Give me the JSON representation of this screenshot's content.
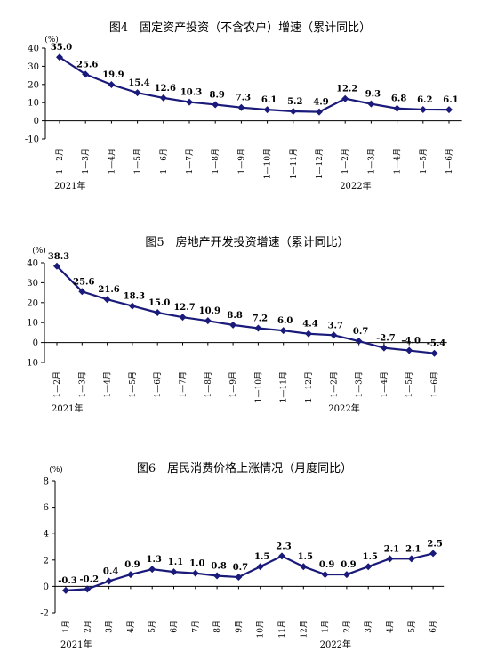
{
  "style": {
    "line_color": "#1a1a7a",
    "axis_color": "#000000"
  },
  "chart_data": [
    {
      "type": "line",
      "title": "图4　固定资产投资（不含农户）增速（累计同比）",
      "unit_label": "(%)",
      "ylim": [
        -10,
        40
      ],
      "yticks": [
        -10,
        0,
        10,
        20,
        30,
        40
      ],
      "categories": [
        "1—2月",
        "1—3月",
        "1—4月",
        "1—5月",
        "1—6月",
        "1—7月",
        "1—8月",
        "1—9月",
        "1—10月",
        "1—11月",
        "1—12月",
        "1—2月",
        "1—3月",
        "1—4月",
        "1—5月",
        "1—6月"
      ],
      "series": [
        {
          "values": [
            35.0,
            25.6,
            19.9,
            15.4,
            12.6,
            10.3,
            8.9,
            7.3,
            6.1,
            5.2,
            4.9,
            12.2,
            9.3,
            6.8,
            6.2,
            6.1
          ]
        }
      ],
      "data_labels": [
        "35.0",
        "25.6",
        "19.9",
        "15.4",
        "12.6",
        "10.3",
        "8.9",
        "7.3",
        "6.1",
        "5.2",
        "4.9",
        "12.2",
        "9.3",
        "6.8",
        "6.2",
        "6.1"
      ],
      "year_labels": [
        {
          "text": "2021年",
          "at_index": 0
        },
        {
          "text": "2022年",
          "at_index": 11
        }
      ],
      "grid": false,
      "legend": "none"
    },
    {
      "type": "line",
      "title": "图5　房地产开发投资增速（累计同比）",
      "unit_label": "(%)",
      "ylim": [
        -10,
        40
      ],
      "yticks": [
        -10,
        0,
        10,
        20,
        30,
        40
      ],
      "categories": [
        "1—2月",
        "1—3月",
        "1—4月",
        "1—5月",
        "1—6月",
        "1—7月",
        "1—8月",
        "1—9月",
        "1—10月",
        "1—11月",
        "1—12月",
        "1—2月",
        "1—3月",
        "1—4月",
        "1—5月",
        "1—6月"
      ],
      "series": [
        {
          "values": [
            38.3,
            25.6,
            21.6,
            18.3,
            15.0,
            12.7,
            10.9,
            8.8,
            7.2,
            6.0,
            4.4,
            3.7,
            0.7,
            -2.7,
            -4.0,
            -5.4
          ]
        }
      ],
      "data_labels": [
        "38.3",
        "25.6",
        "21.6",
        "18.3",
        "15.0",
        "12.7",
        "10.9",
        "8.8",
        "7.2",
        "6.0",
        "4.4",
        "3.7",
        "0.7",
        "-2.7",
        "-4.0",
        "-5.4"
      ],
      "year_labels": [
        {
          "text": "2021年",
          "at_index": 0
        },
        {
          "text": "2022年",
          "at_index": 11
        }
      ],
      "grid": false,
      "legend": "none"
    },
    {
      "type": "line",
      "title": "图6　居民消费价格上涨情况（月度同比）",
      "unit_label": "(%)",
      "ylim": [
        -2,
        8
      ],
      "yticks": [
        -2,
        0,
        2,
        4,
        6,
        8
      ],
      "categories": [
        "1月",
        "2月",
        "3月",
        "4月",
        "5月",
        "6月",
        "7月",
        "8月",
        "9月",
        "10月",
        "11月",
        "12月",
        "1月",
        "2月",
        "3月",
        "4月",
        "5月",
        "6月"
      ],
      "series": [
        {
          "values": [
            -0.3,
            -0.2,
            0.4,
            0.9,
            1.3,
            1.1,
            1.0,
            0.8,
            0.7,
            1.5,
            2.3,
            1.5,
            0.9,
            0.9,
            1.5,
            2.1,
            2.1,
            2.5
          ]
        }
      ],
      "data_labels": [
        "-0.3",
        "-0.2",
        "0.4",
        "0.9",
        "1.3",
        "1.1",
        "1.0",
        "0.8",
        "0.7",
        "1.5",
        "2.3",
        "1.5",
        "0.9",
        "0.9",
        "1.5",
        "2.1",
        "2.1",
        "2.5"
      ],
      "year_labels": [
        {
          "text": "2021年",
          "at_index": 0
        },
        {
          "text": "2022年",
          "at_index": 12
        }
      ],
      "grid": false,
      "legend": "none"
    }
  ]
}
